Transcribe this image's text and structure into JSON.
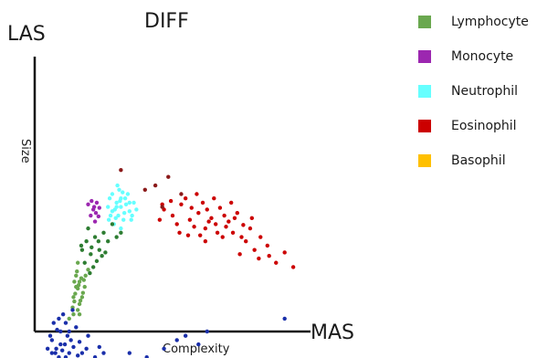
{
  "chart_data": {
    "type": "scatter",
    "title": "DIFF",
    "y_axis_name": "LAS",
    "ylabel": "Size",
    "x_axis_name": "MAS",
    "xlabel": "Complexity",
    "grid": false,
    "legend_position": "right",
    "series": [
      {
        "name": "Lymphocyte",
        "color": "#6aa84f",
        "points": [
          [
            48,
            255
          ],
          [
            50,
            270
          ],
          [
            52,
            262
          ],
          [
            46,
            285
          ],
          [
            55,
            280
          ],
          [
            50,
            295
          ],
          [
            45,
            300
          ],
          [
            52,
            288
          ],
          [
            58,
            268
          ],
          [
            47,
            276
          ],
          [
            54,
            258
          ],
          [
            49,
            250
          ],
          [
            44,
            292
          ],
          [
            56,
            275
          ],
          [
            51,
            266
          ],
          [
            62,
            248
          ],
          [
            40,
            305
          ],
          [
            53,
            284
          ],
          [
            48,
            268
          ],
          [
            57,
            260
          ],
          [
            45,
            280
          ],
          [
            50,
            240
          ],
          [
            52,
            300
          ],
          [
            46,
            262
          ],
          [
            59,
            255
          ]
        ]
      },
      {
        "name": "Monocyte",
        "color": "#9c27b0",
        "points": [
          [
            68,
            178
          ],
          [
            72,
            170
          ],
          [
            65,
            185
          ],
          [
            70,
            192
          ],
          [
            75,
            176
          ],
          [
            62,
            172
          ],
          [
            74,
            186
          ],
          [
            66,
            168
          ],
          [
            71,
            182
          ],
          [
            69,
            175
          ]
        ]
      },
      {
        "name": "Neutrophil",
        "color": "#66ffff",
        "points": [
          [
            90,
            160
          ],
          [
            95,
            170
          ],
          [
            100,
            175
          ],
          [
            88,
            185
          ],
          [
            105,
            165
          ],
          [
            98,
            155
          ],
          [
            110,
            180
          ],
          [
            92,
            195
          ],
          [
            103,
            190
          ],
          [
            115,
            170
          ],
          [
            85,
            175
          ],
          [
            96,
            150
          ],
          [
            108,
            160
          ],
          [
            100,
            200
          ],
          [
            93,
            178
          ],
          [
            112,
            190
          ],
          [
            87,
            165
          ],
          [
            104,
            182
          ],
          [
            99,
            168
          ],
          [
            118,
            178
          ],
          [
            94,
            188
          ],
          [
            106,
            172
          ],
          [
            90,
            180
          ],
          [
            102,
            158
          ],
          [
            97,
            185
          ],
          [
            110,
            170
          ],
          [
            86,
            190
          ],
          [
            100,
            165
          ],
          [
            113,
            185
          ],
          [
            95,
            175
          ]
        ]
      },
      {
        "name": "Eosinophil",
        "color": "#cc0000",
        "points": [
          [
            150,
            178
          ],
          [
            160,
            185
          ],
          [
            170,
            172
          ],
          [
            180,
            190
          ],
          [
            190,
            182
          ],
          [
            200,
            178
          ],
          [
            210,
            195
          ],
          [
            220,
            185
          ],
          [
            230,
            205
          ],
          [
            240,
            210
          ],
          [
            250,
            200
          ],
          [
            175,
            165
          ],
          [
            185,
            198
          ],
          [
            195,
            170
          ],
          [
            205,
            188
          ],
          [
            215,
            176
          ],
          [
            225,
            192
          ],
          [
            235,
            182
          ],
          [
            245,
            215
          ],
          [
            255,
            225
          ],
          [
            165,
            195
          ],
          [
            145,
            190
          ],
          [
            158,
            168
          ],
          [
            178,
            208
          ],
          [
            198,
            200
          ],
          [
            218,
            210
          ],
          [
            228,
            170
          ],
          [
            238,
            230
          ],
          [
            260,
            235
          ],
          [
            270,
            220
          ],
          [
            280,
            240
          ],
          [
            188,
            160
          ],
          [
            208,
            165
          ],
          [
            168,
            205
          ],
          [
            148,
            172
          ],
          [
            290,
            228
          ],
          [
            300,
            245
          ],
          [
            198,
            215
          ],
          [
            212,
            205
          ],
          [
            242,
            196
          ],
          [
            252,
            188
          ],
          [
            262,
            210
          ],
          [
            272,
            232
          ],
          [
            182,
            176
          ],
          [
            202,
            192
          ],
          [
            222,
            198
          ],
          [
            192,
            208
          ],
          [
            232,
            188
          ]
        ]
      },
      {
        "name": "Basophil",
        "color": "#ffc000",
        "points": []
      },
      {
        "name": "",
        "color": "#1a2faa",
        "points": [
          [
            20,
            330
          ],
          [
            25,
            340
          ],
          [
            30,
            320
          ],
          [
            35,
            335
          ],
          [
            40,
            345
          ],
          [
            22,
            310
          ],
          [
            28,
            350
          ],
          [
            33,
            300
          ],
          [
            38,
            325
          ],
          [
            45,
            338
          ],
          [
            50,
            348
          ],
          [
            18,
            325
          ],
          [
            26,
            318
          ],
          [
            32,
            342
          ],
          [
            42,
            330
          ],
          [
            48,
            315
          ],
          [
            24,
            345
          ],
          [
            36,
            310
          ],
          [
            30,
            335
          ],
          [
            40,
            320
          ],
          [
            55,
            345
          ],
          [
            60,
            340
          ],
          [
            70,
            350
          ],
          [
            80,
            345
          ],
          [
            95,
            355
          ],
          [
            110,
            345
          ],
          [
            130,
            350
          ],
          [
            150,
            340
          ],
          [
            165,
            330
          ],
          [
            175,
            325
          ],
          [
            190,
            335
          ],
          [
            200,
            320
          ],
          [
            290,
            305
          ],
          [
            15,
            340
          ],
          [
            44,
            295
          ],
          [
            28,
            305
          ],
          [
            52,
            332
          ],
          [
            36,
            350
          ],
          [
            20,
            345
          ],
          [
            62,
            325
          ],
          [
            75,
            338
          ]
        ]
      },
      {
        "name": "",
        "color": "#2e7d32",
        "points": [
          [
            60,
            215
          ],
          [
            65,
            230
          ],
          [
            55,
            225
          ],
          [
            70,
            210
          ],
          [
            62,
            200
          ],
          [
            75,
            225
          ],
          [
            58,
            240
          ],
          [
            68,
            245
          ],
          [
            80,
            205
          ],
          [
            85,
            215
          ],
          [
            72,
            238
          ],
          [
            54,
            220
          ],
          [
            90,
            195
          ],
          [
            64,
            252
          ],
          [
            78,
            232
          ],
          [
            95,
            210
          ],
          [
            66,
            222
          ],
          [
            82,
            228
          ],
          [
            100,
            205
          ],
          [
            74,
            215
          ]
        ]
      },
      {
        "name": "",
        "color": "#8b1a1a",
        "points": [
          [
            100,
            132
          ],
          [
            140,
            150
          ],
          [
            155,
            140
          ],
          [
            170,
            160
          ],
          [
            128,
            155
          ],
          [
            148,
            175
          ]
        ]
      }
    ]
  },
  "legend": [
    {
      "label": "Lymphocyte",
      "color": "#6aa84f"
    },
    {
      "label": "Monocyte",
      "color": "#9c27b0"
    },
    {
      "label": "Neutrophil",
      "color": "#66ffff"
    },
    {
      "label": "Eosinophil",
      "color": "#cc0000"
    },
    {
      "label": "Basophil",
      "color": "#ffc000"
    }
  ]
}
